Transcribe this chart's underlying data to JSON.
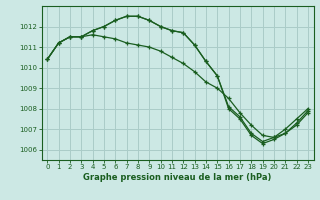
{
  "background_color": "#cce8e4",
  "grid_color": "#aaccc8",
  "line_color": "#1a5e20",
  "title": "Graphe pression niveau de la mer (hPa)",
  "ylim": [
    1005.5,
    1013.0
  ],
  "xlim": [
    -0.5,
    23.5
  ],
  "yticks": [
    1006,
    1007,
    1008,
    1009,
    1010,
    1011,
    1012
  ],
  "xticks": [
    0,
    1,
    2,
    3,
    4,
    5,
    6,
    7,
    8,
    9,
    10,
    11,
    12,
    13,
    14,
    15,
    16,
    17,
    18,
    19,
    20,
    21,
    22,
    23
  ],
  "series": [
    [
      1010.4,
      1011.2,
      1011.5,
      1011.5,
      1011.8,
      1012.0,
      1012.3,
      1012.5,
      1012.5,
      1012.3,
      1012.0,
      1011.8,
      1011.7,
      1011.1,
      1010.3,
      1009.6,
      1008.1,
      1007.6,
      1006.8,
      1006.4,
      1006.6,
      1007.0,
      1007.5,
      1008.0
    ],
    [
      1010.4,
      1011.2,
      1011.5,
      1011.5,
      1011.6,
      1011.5,
      1011.4,
      1011.2,
      1011.1,
      1011.0,
      1010.8,
      1010.5,
      1010.2,
      1009.8,
      1009.3,
      1009.0,
      1008.5,
      1007.8,
      1007.2,
      1006.7,
      1006.6,
      1006.8,
      1007.2,
      1007.8
    ],
    [
      1010.4,
      1011.2,
      1011.5,
      1011.5,
      1011.8,
      1012.0,
      1012.3,
      1012.5,
      1012.5,
      1012.3,
      1012.0,
      1011.8,
      1011.7,
      1011.1,
      1010.3,
      1009.6,
      1008.0,
      1007.5,
      1006.7,
      1006.3,
      1006.5,
      1006.8,
      1007.3,
      1007.9
    ]
  ]
}
